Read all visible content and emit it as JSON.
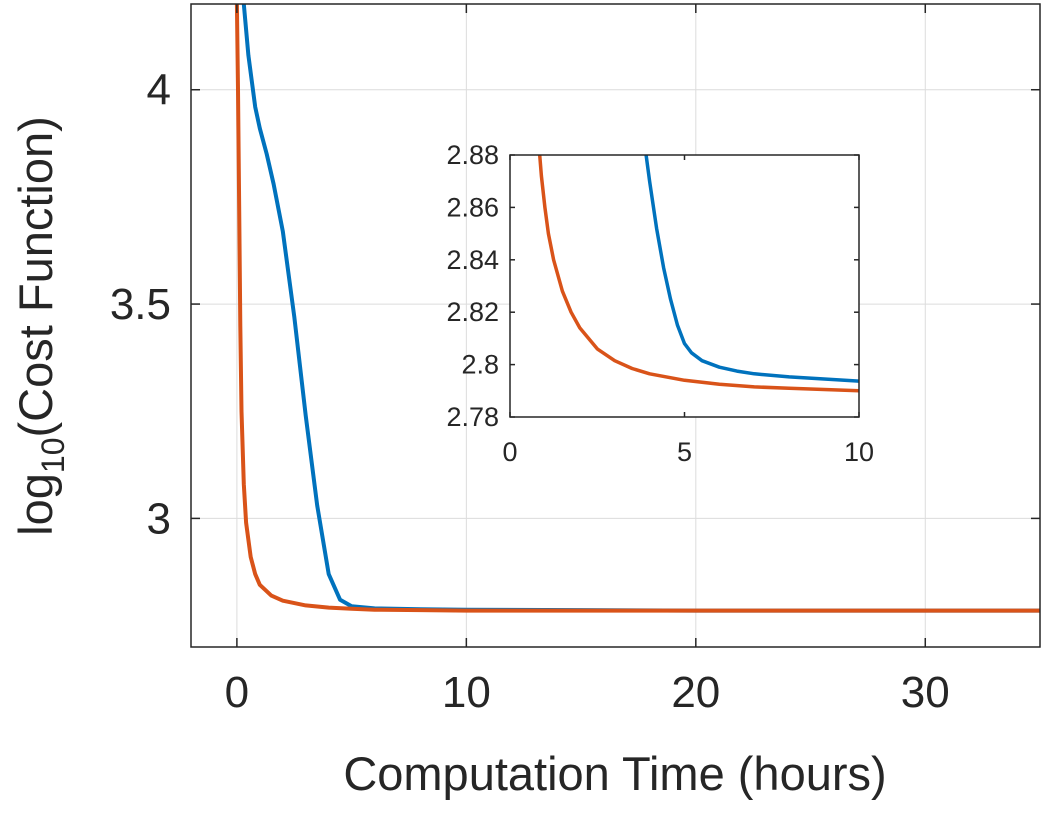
{
  "chart_data": [
    {
      "type": "line",
      "title": "",
      "xlabel": "Computation Time (hours)",
      "ylabel_base": "log",
      "ylabel_sub": "10",
      "ylabel_rest": "(Cost Function)",
      "xlim": [
        -2,
        35
      ],
      "ylim": [
        2.7,
        4.2
      ],
      "xticks": [
        0,
        10,
        20,
        30
      ],
      "xtick_labels": [
        "0",
        "10",
        "20",
        "30"
      ],
      "yticks": [
        3.0,
        3.5,
        4.0
      ],
      "ytick_labels": [
        "3",
        "3.5",
        "4"
      ],
      "grid": true,
      "series": [
        {
          "color": "#0072BD",
          "x": [
            0.3,
            0.5,
            0.8,
            1.0,
            1.3,
            1.6,
            2.0,
            2.5,
            3.0,
            3.5,
            4.0,
            4.5,
            5.0,
            6.0,
            8.0,
            10.0,
            15.0,
            20.0,
            25.0,
            30.0,
            35.0
          ],
          "y": [
            4.2,
            4.08,
            3.96,
            3.91,
            3.85,
            3.78,
            3.67,
            3.47,
            3.24,
            3.03,
            2.87,
            2.81,
            2.795,
            2.79,
            2.788,
            2.787,
            2.786,
            2.785,
            2.785,
            2.785,
            2.785
          ]
        },
        {
          "color": "#D95319",
          "x": [
            0.0,
            0.05,
            0.1,
            0.15,
            0.2,
            0.3,
            0.4,
            0.6,
            0.8,
            1.0,
            1.5,
            2.0,
            3.0,
            4.0,
            5.0,
            6.0,
            8.0,
            10.0,
            15.0,
            20.0,
            30.0,
            35.0
          ],
          "y": [
            4.2,
            4.0,
            3.72,
            3.45,
            3.25,
            3.08,
            2.99,
            2.91,
            2.87,
            2.845,
            2.82,
            2.808,
            2.797,
            2.792,
            2.789,
            2.787,
            2.786,
            2.785,
            2.785,
            2.785,
            2.785,
            2.785
          ]
        }
      ]
    },
    {
      "type": "line",
      "title": "",
      "xlim": [
        0,
        10
      ],
      "ylim": [
        2.78,
        2.88
      ],
      "xticks": [
        0,
        5,
        10
      ],
      "xtick_labels": [
        "0",
        "5",
        "10"
      ],
      "yticks": [
        2.78,
        2.8,
        2.82,
        2.84,
        2.86,
        2.88
      ],
      "ytick_labels": [
        "2.78",
        "2.8",
        "2.82",
        "2.84",
        "2.86",
        "2.88"
      ],
      "grid": false,
      "series": [
        {
          "color": "#0072BD",
          "x": [
            3.9,
            4.0,
            4.2,
            4.4,
            4.6,
            4.8,
            5.0,
            5.2,
            5.5,
            6.0,
            6.5,
            7.0,
            8.0,
            9.0,
            10.0
          ],
          "y": [
            2.88,
            2.87,
            2.852,
            2.837,
            2.825,
            2.815,
            2.808,
            2.8045,
            2.8015,
            2.799,
            2.7975,
            2.7965,
            2.7953,
            2.7945,
            2.7937
          ]
        },
        {
          "color": "#D95319",
          "x": [
            0.85,
            0.9,
            1.0,
            1.1,
            1.25,
            1.5,
            1.75,
            2.0,
            2.5,
            3.0,
            3.5,
            4.0,
            5.0,
            6.0,
            7.0,
            8.0,
            9.0,
            10.0
          ],
          "y": [
            2.88,
            2.872,
            2.86,
            2.85,
            2.84,
            2.828,
            2.82,
            2.814,
            2.806,
            2.8015,
            2.7985,
            2.7965,
            2.794,
            2.7925,
            2.7915,
            2.791,
            2.7905,
            2.79
          ]
        }
      ]
    }
  ]
}
